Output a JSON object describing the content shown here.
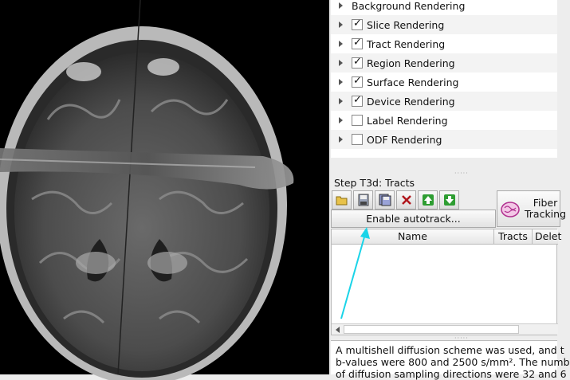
{
  "render_tree": {
    "items": [
      {
        "label": "Background Rendering",
        "has_checkbox": false,
        "checked": false
      },
      {
        "label": "Slice Rendering",
        "has_checkbox": true,
        "checked": true
      },
      {
        "label": "Tract Rendering",
        "has_checkbox": true,
        "checked": true
      },
      {
        "label": "Region Rendering",
        "has_checkbox": true,
        "checked": true
      },
      {
        "label": "Surface Rendering",
        "has_checkbox": true,
        "checked": true
      },
      {
        "label": "Device Rendering",
        "has_checkbox": true,
        "checked": true
      },
      {
        "label": "Label Rendering",
        "has_checkbox": true,
        "checked": false
      },
      {
        "label": "ODF Rendering",
        "has_checkbox": true,
        "checked": false
      }
    ]
  },
  "step": {
    "title": "Step T3d: Tracts",
    "toolbar_icons": [
      "folder-open-icon",
      "save-icon",
      "save-all-icon",
      "delete-icon",
      "move-up-icon",
      "move-down-icon"
    ],
    "autotrack_label": "Enable autotrack...",
    "fiber_tracking_line1": "Fiber",
    "fiber_tracking_line2": "Tracking"
  },
  "tract_table": {
    "columns": [
      "Name",
      "Tracts",
      "Delet"
    ]
  },
  "description": {
    "lines": [
      "A multishell diffusion scheme was used, and t",
      "b-values were 800 and 2500 s/mm². The numb",
      "of diffusion sampling directions were 32 and 6"
    ]
  },
  "colors": {
    "annotation_arrow": "#1ad4e8",
    "toolbar_delete": "#b0171d",
    "toolbar_arrows": "#2e9d32"
  }
}
